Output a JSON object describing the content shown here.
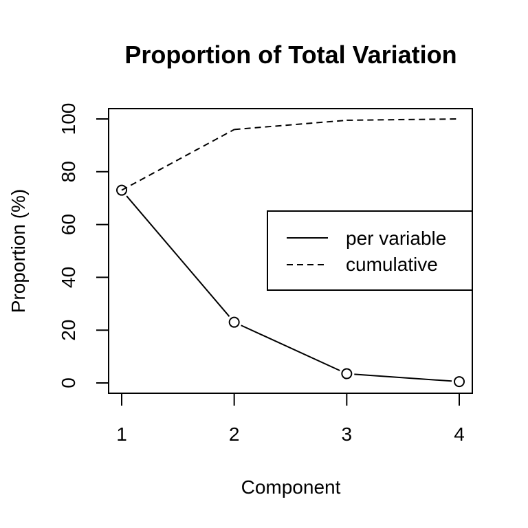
{
  "chart_data": {
    "type": "line",
    "title": "Proportion of Total Variation",
    "xlabel": "Component",
    "ylabel": "Proportion (%)",
    "x": [
      1,
      2,
      3,
      4
    ],
    "xticks": [
      "1",
      "2",
      "3",
      "4"
    ],
    "yticks": [
      "0",
      "20",
      "40",
      "60",
      "80",
      "100"
    ],
    "ylim": [
      0,
      100
    ],
    "xlim": [
      1,
      4
    ],
    "grid": false,
    "legend_position": "right",
    "series": [
      {
        "name": "per variable",
        "line_style": "solid",
        "markers": "open-circle",
        "values": [
          73,
          23,
          3.5,
          0.5
        ]
      },
      {
        "name": "cumulative",
        "line_style": "dashed",
        "markers": "none",
        "values": [
          73,
          96,
          99.5,
          100
        ]
      }
    ],
    "colors": {
      "line": "#000000",
      "background": "#ffffff"
    }
  }
}
